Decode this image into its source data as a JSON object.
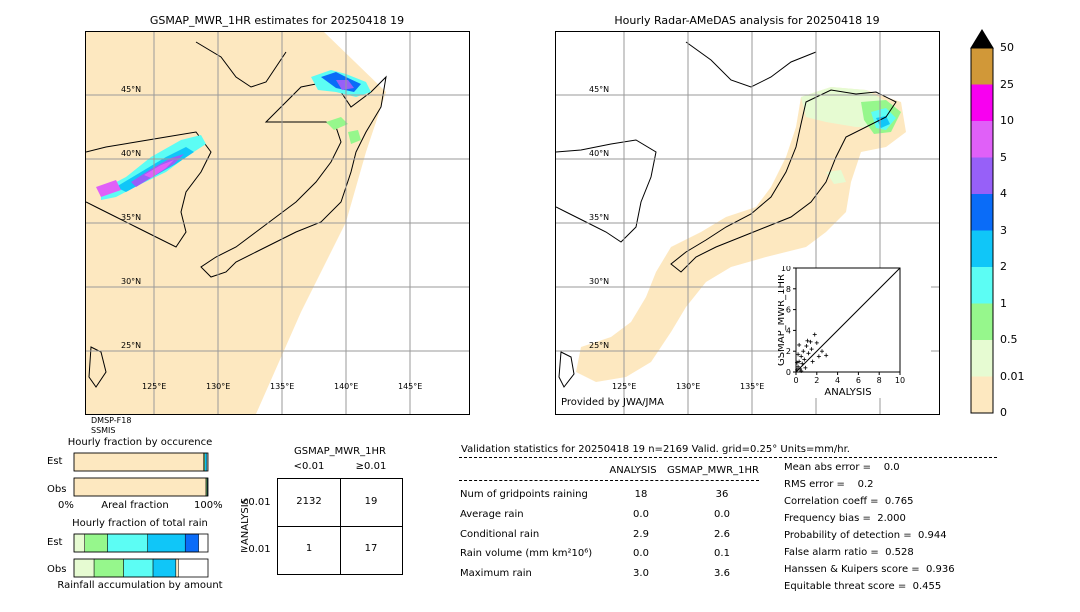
{
  "left_map": {
    "title": "GSMAP_MWR_1HR estimates for 20250418 19",
    "lat_labels": [
      "45°N",
      "40°N",
      "35°N",
      "30°N",
      "25°N"
    ],
    "lon_labels": [
      "125°E",
      "130°E",
      "135°E",
      "140°E",
      "145°E"
    ],
    "satellite": [
      "DMSP-F18",
      "SSMIS"
    ]
  },
  "right_map": {
    "title": "Hourly Radar-AMeDAS analysis for 20250418 19",
    "lat_labels": [
      "45°N",
      "40°N",
      "35°N",
      "30°N",
      "25°N"
    ],
    "lon_labels": [
      "125°E",
      "130°E",
      "135°E"
    ],
    "provider": "Provided by JWA/JMA"
  },
  "colorbar": {
    "ticks": [
      "0",
      "0.01",
      "0.5",
      "1",
      "2",
      "3",
      "4",
      "5",
      "10",
      "25",
      "50"
    ],
    "colors": [
      "#fde8c0",
      "#e6fbd2",
      "#96f78c",
      "#5cfdf4",
      "#10c6f8",
      "#0a6cf8",
      "#9760f8",
      "#e060f8",
      "#f800f0",
      "#d19838",
      "#000000"
    ]
  },
  "chart_data": [
    {
      "type": "scatter",
      "xlabel": "ANALYSIS",
      "ylabel": "GSMAP_MWR_1HR",
      "xlim": [
        0,
        10
      ],
      "ylim": [
        0,
        10
      ],
      "x_ticks": [
        "0",
        "2",
        "4",
        "6",
        "8",
        "10"
      ],
      "y_ticks": [
        "0",
        "2",
        "4",
        "6",
        "8",
        "10"
      ],
      "points": [
        [
          0.1,
          0.2
        ],
        [
          0.2,
          0.5
        ],
        [
          0.3,
          1.0
        ],
        [
          0.4,
          0.3
        ],
        [
          0.5,
          1.5
        ],
        [
          0.6,
          0.8
        ],
        [
          0.7,
          2.0
        ],
        [
          0.8,
          1.2
        ],
        [
          1.0,
          2.5
        ],
        [
          1.2,
          1.8
        ],
        [
          1.5,
          2.2
        ],
        [
          1.8,
          3.6
        ],
        [
          2.0,
          2.8
        ],
        [
          2.2,
          1.5
        ],
        [
          2.5,
          2.0
        ],
        [
          0.3,
          2.6
        ],
        [
          0.9,
          0.4
        ],
        [
          1.1,
          3.0
        ],
        [
          0.2,
          1.7
        ],
        [
          1.6,
          1.0
        ],
        [
          2.9,
          1.6
        ],
        [
          0.5,
          0.1
        ],
        [
          0.1,
          0.9
        ],
        [
          1.4,
          2.9
        ]
      ]
    },
    {
      "type": "bar",
      "title": "Hourly fraction by occurence",
      "categories": [
        "Est",
        "Obs"
      ],
      "xlabel": "Areal fraction",
      "x_ticks": [
        "0%",
        "100%"
      ],
      "series": [
        {
          "values": [
            0.968,
            0.985
          ]
        },
        {
          "values": [
            0.008,
            0.008
          ]
        },
        {
          "values": [
            0.016,
            0.004
          ]
        }
      ]
    },
    {
      "type": "bar",
      "title": "Hourly fraction of total rain",
      "categories": [
        "Est",
        "Obs"
      ],
      "xlabel": "Rainfall accumulation by amount",
      "series": [
        {
          "values": [
            0.08,
            0.15
          ]
        },
        {
          "values": [
            0.17,
            0.22
          ]
        },
        {
          "values": [
            0.3,
            0.22
          ]
        },
        {
          "values": [
            0.28,
            0.17
          ]
        },
        {
          "values": [
            0.1,
            0.0
          ]
        },
        {
          "values": [
            0.0,
            0.02
          ]
        }
      ]
    }
  ],
  "contingency": {
    "title": "GSMAP_MWR_1HR",
    "col_headers": [
      "<0.01",
      "≥0.01"
    ],
    "row_headers": [
      "<0.01",
      "≥0.01"
    ],
    "side_label": "ANALYSIS",
    "cells": [
      [
        "2132",
        "19"
      ],
      [
        "1",
        "17"
      ]
    ]
  },
  "validation": {
    "header": "Validation statistics for 20250418 19  n=2169 Valid. grid=0.25° Units=mm/hr.",
    "col_analysis": "ANALYSIS",
    "col_gsmap": "GSMAP_MWR_1HR",
    "rows": [
      {
        "label": "Num of gridpoints raining",
        "analysis": "18",
        "gsmap": "36"
      },
      {
        "label": "Average rain",
        "analysis": "0.0",
        "gsmap": "0.0"
      },
      {
        "label": "Conditional rain",
        "analysis": "2.9",
        "gsmap": "2.6"
      },
      {
        "label": "Rain volume (mm km²10⁶)",
        "analysis": "0.0",
        "gsmap": "0.1"
      },
      {
        "label": "Maximum rain",
        "analysis": "3.0",
        "gsmap": "3.6"
      }
    ],
    "scores": [
      "Mean abs error =    0.0",
      "RMS error =    0.2",
      "Correlation coeff =  0.765",
      "Frequency bias =  2.000",
      "Probability of detection =  0.944",
      "False alarm ratio =  0.528",
      "Hanssen & Kuipers score =  0.936",
      "Equitable threat score =  0.455"
    ]
  }
}
